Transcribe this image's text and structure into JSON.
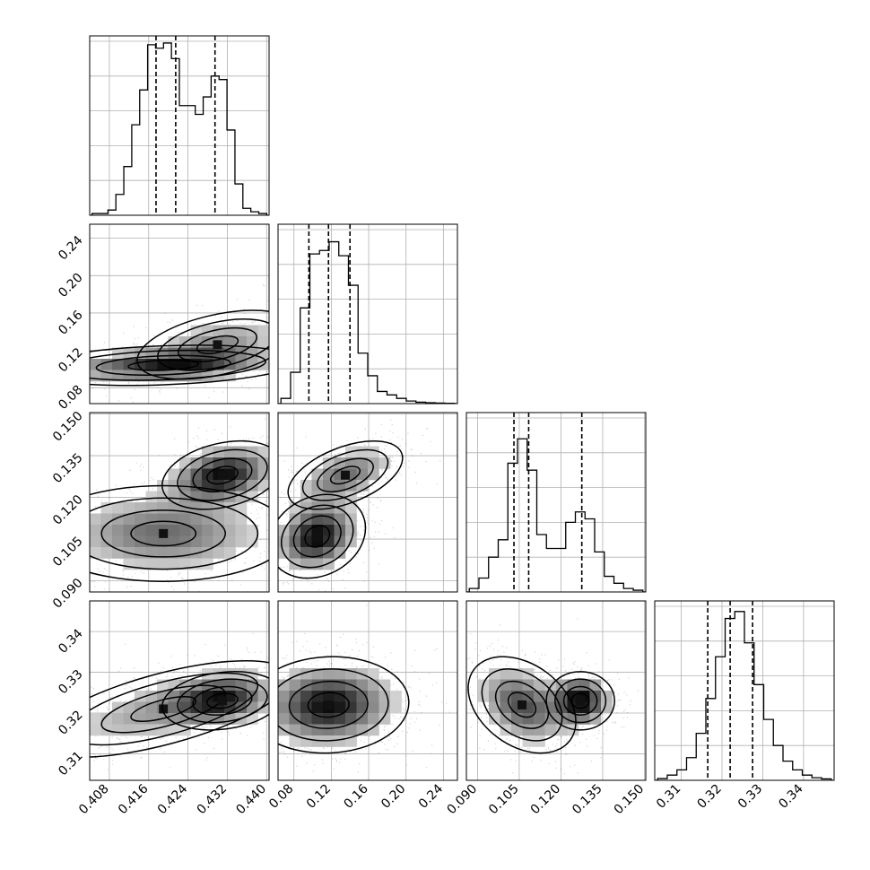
{
  "chart_data": {
    "type": "corner",
    "title": "",
    "colors": {
      "ink": "#000000",
      "grid": "#b0b0b0",
      "frame": "#000000",
      "scatter": "#000000"
    },
    "grid": true,
    "quantile_lines": "dashed",
    "parameters": [
      {
        "range": [
          0.404,
          0.4405
        ],
        "ticks": [
          "0.408",
          "0.416",
          "0.424",
          "0.432",
          "0.440"
        ],
        "tick_values": [
          0.408,
          0.416,
          0.424,
          0.432,
          0.44
        ],
        "quantiles": [
          0.4175,
          0.4215,
          0.4295
        ],
        "hist": [
          0.01,
          0.01,
          0.03,
          0.12,
          0.28,
          0.52,
          0.72,
          0.98,
          0.96,
          0.99,
          0.9,
          0.63,
          0.63,
          0.58,
          0.68,
          0.8,
          0.78,
          0.49,
          0.18,
          0.04,
          0.02,
          0.01
        ]
      },
      {
        "range": [
          0.063,
          0.255
        ],
        "ticks": [
          "0.08",
          "0.12",
          "0.16",
          "0.20",
          "0.24"
        ],
        "tick_values": [
          0.08,
          0.12,
          0.16,
          0.2,
          0.24
        ],
        "quantiles": [
          0.096,
          0.117,
          0.14
        ],
        "hist": [
          0.03,
          0.18,
          0.55,
          0.86,
          0.88,
          0.93,
          0.85,
          0.68,
          0.29,
          0.16,
          0.07,
          0.05,
          0.03,
          0.015,
          0.008,
          0.005,
          0.003,
          0.002
        ]
      },
      {
        "range": [
          0.086,
          0.1505
        ],
        "ticks": [
          "0.090",
          "0.105",
          "0.120",
          "0.135",
          "0.150"
        ],
        "tick_values": [
          0.09,
          0.105,
          0.12,
          0.135,
          0.15
        ],
        "quantiles": [
          0.1031,
          0.1084,
          0.1275
        ],
        "hist": [
          0.02,
          0.08,
          0.2,
          0.3,
          0.74,
          0.88,
          0.7,
          0.33,
          0.25,
          0.25,
          0.4,
          0.46,
          0.42,
          0.23,
          0.09,
          0.05,
          0.02,
          0.01
        ]
      },
      {
        "range": [
          0.3035,
          0.3475
        ],
        "ticks": [
          "0.31",
          "0.32",
          "0.33",
          "0.34"
        ],
        "tick_values": [
          0.31,
          0.32,
          0.33,
          0.34
        ],
        "quantiles": [
          0.3165,
          0.322,
          0.3275
        ],
        "hist": [
          0.01,
          0.03,
          0.06,
          0.13,
          0.27,
          0.47,
          0.71,
          0.93,
          0.97,
          0.79,
          0.55,
          0.35,
          0.2,
          0.11,
          0.06,
          0.03,
          0.015,
          0.008
        ]
      }
    ],
    "modes": {
      "0-1": [
        [
          0.419,
          0.104,
          0.013,
          0.01,
          0.25,
          0.62
        ],
        [
          0.43,
          0.126,
          0.008,
          0.018,
          0.45,
          0.38
        ]
      ],
      "0-2": [
        [
          0.419,
          0.107,
          0.012,
          0.008,
          0.0,
          0.62
        ],
        [
          0.431,
          0.128,
          0.006,
          0.006,
          0.3,
          0.38
        ]
      ],
      "0-3": [
        [
          0.419,
          0.321,
          0.012,
          0.0055,
          0.65,
          0.62
        ],
        [
          0.431,
          0.323,
          0.006,
          0.0035,
          0.2,
          0.38
        ]
      ],
      "1-2": [
        [
          0.105,
          0.106,
          0.024,
          0.007,
          0.2,
          0.62
        ],
        [
          0.135,
          0.128,
          0.03,
          0.006,
          0.5,
          0.38
        ]
      ],
      "1-3": [
        [
          0.117,
          0.322,
          0.04,
          0.0055,
          0.05,
          1.0
        ]
      ],
      "2-3": [
        [
          0.106,
          0.322,
          0.009,
          0.0055,
          -0.35,
          0.62
        ],
        [
          0.127,
          0.323,
          0.006,
          0.0035,
          0.0,
          0.38
        ]
      ]
    }
  }
}
